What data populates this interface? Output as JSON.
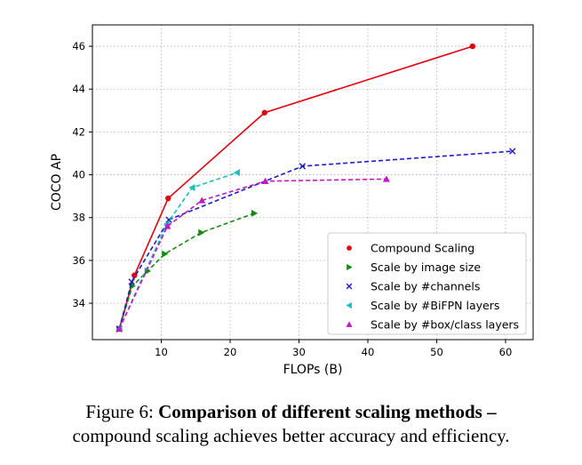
{
  "chart_data": {
    "type": "line",
    "title": "",
    "xlabel": "FLOPs (B)",
    "ylabel": "COCO AP",
    "xlim": [
      0,
      64
    ],
    "ylim": [
      32.3,
      47.0
    ],
    "xticks": [
      10,
      20,
      30,
      40,
      50,
      60
    ],
    "yticks": [
      34,
      36,
      38,
      40,
      42,
      44,
      46
    ],
    "xtick_labels": [
      "10",
      "20",
      "30",
      "40",
      "50",
      "60"
    ],
    "ytick_labels": [
      "34",
      "36",
      "38",
      "40",
      "42",
      "44",
      "46"
    ],
    "grid": true,
    "legend_location": "lower-right",
    "series": [
      {
        "name": "Compound Scaling",
        "color": "#e8000b",
        "marker": "circle",
        "line": "solid",
        "x": [
          3.9,
          6.1,
          11.0,
          25.0,
          55.2
        ],
        "y": [
          32.8,
          35.3,
          38.9,
          42.9,
          46.0
        ]
      },
      {
        "name": "Scale by image size",
        "color": "#138c13",
        "marker": "triangle-right",
        "line": "dashed",
        "x": [
          3.9,
          5.8,
          8.0,
          10.5,
          15.8,
          23.5
        ],
        "y": [
          32.8,
          34.8,
          35.5,
          36.3,
          37.3,
          38.2
        ]
      },
      {
        "name": "Scale by #channels",
        "color": "#1c1cc8",
        "marker": "x",
        "line": "dashed",
        "x": [
          3.9,
          5.7,
          11.1,
          30.5,
          61.0
        ],
        "y": [
          32.8,
          35.0,
          37.9,
          40.4,
          41.1
        ]
      },
      {
        "name": "Scale by #BiFPN layers",
        "color": "#1abfbf",
        "marker": "triangle-left",
        "line": "dashed",
        "x": [
          3.9,
          10.8,
          14.5,
          21.0
        ],
        "y": [
          32.8,
          37.7,
          39.4,
          40.1
        ]
      },
      {
        "name": "Scale by #box/class layers",
        "color": "#c21ac2",
        "marker": "triangle-up",
        "line": "dashed",
        "x": [
          3.9,
          10.9,
          15.9,
          25.1,
          42.7
        ],
        "y": [
          32.8,
          37.6,
          38.8,
          39.7,
          39.8
        ]
      }
    ]
  },
  "caption": {
    "label": "Figure 6:",
    "bold_text": "Comparison of different scaling methods –",
    "rest_text": "compound scaling achieves better accuracy and efficiency."
  }
}
